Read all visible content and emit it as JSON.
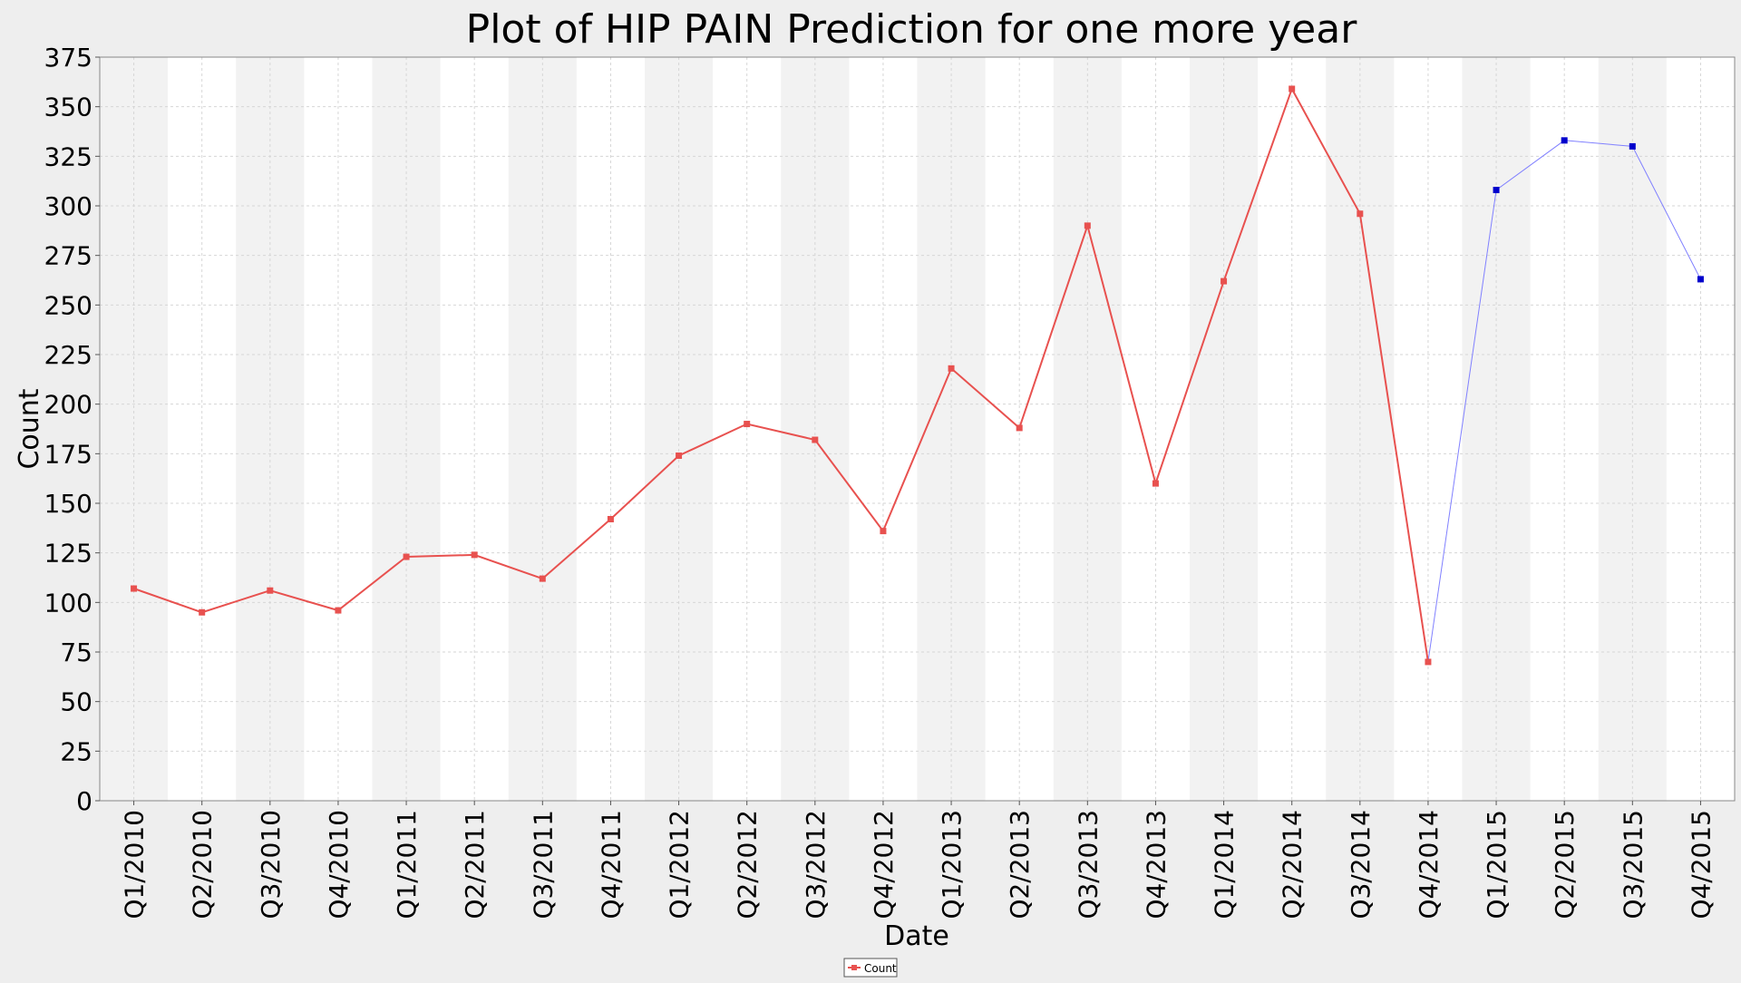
{
  "chart_data": {
    "type": "line",
    "title": "Plot of HIP PAIN Prediction for one more year",
    "xlabel": "Date",
    "ylabel": "Count",
    "ylim": [
      0,
      375
    ],
    "y_ticks": [
      0,
      25,
      50,
      75,
      100,
      125,
      150,
      175,
      200,
      225,
      250,
      275,
      300,
      325,
      350,
      375
    ],
    "grid": true,
    "legend_position": "bottom-center",
    "categories": [
      "Q1/2010",
      "Q2/2010",
      "Q3/2010",
      "Q4/2010",
      "Q1/2011",
      "Q2/2011",
      "Q3/2011",
      "Q4/2011",
      "Q1/2012",
      "Q2/2012",
      "Q3/2012",
      "Q4/2012",
      "Q1/2013",
      "Q2/2013",
      "Q3/2013",
      "Q4/2013",
      "Q1/2014",
      "Q2/2014",
      "Q3/2014",
      "Q4/2014",
      "Q1/2015",
      "Q2/2015",
      "Q3/2015",
      "Q4/2015"
    ],
    "series": [
      {
        "name": "Count",
        "color": "#e8514f",
        "values": [
          107,
          95,
          106,
          96,
          123,
          124,
          112,
          142,
          174,
          190,
          182,
          136,
          218,
          188,
          290,
          160,
          262,
          359,
          296,
          70,
          null,
          null,
          null,
          null
        ]
      },
      {
        "color": "#0000cc",
        "line_color": "#8080ff",
        "connect_from_index": 19,
        "values": [
          null,
          null,
          null,
          null,
          null,
          null,
          null,
          null,
          null,
          null,
          null,
          null,
          null,
          null,
          null,
          null,
          null,
          null,
          null,
          null,
          308,
          333,
          330,
          263
        ]
      }
    ],
    "band_colors": [
      "#f2f2f2",
      "#ffffff"
    ]
  }
}
